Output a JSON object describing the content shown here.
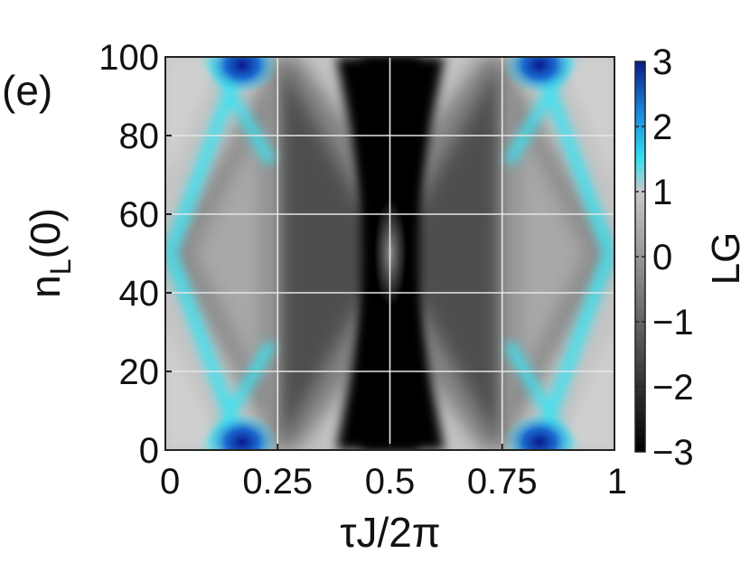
{
  "panel_label": "(e)",
  "chart_data": {
    "type": "heatmap",
    "title": "",
    "xlabel": "τJ/2π",
    "ylabel_main": "n",
    "ylabel_sub": "L",
    "ylabel_tail": "(0)",
    "xlim": [
      0,
      1
    ],
    "ylim": [
      0,
      100
    ],
    "x_ticks": [
      {
        "value": 0,
        "label": "0"
      },
      {
        "value": 0.25,
        "label": "0.25"
      },
      {
        "value": 0.5,
        "label": "0.5"
      },
      {
        "value": 0.75,
        "label": "0.75"
      },
      {
        "value": 1,
        "label": "1"
      }
    ],
    "y_ticks": [
      {
        "value": 0,
        "label": "0"
      },
      {
        "value": 20,
        "label": "20"
      },
      {
        "value": 40,
        "label": "40"
      },
      {
        "value": 60,
        "label": "60"
      },
      {
        "value": 80,
        "label": "80"
      },
      {
        "value": 100,
        "label": "100"
      }
    ],
    "grid": true,
    "colorbar": {
      "label": "LG",
      "range": [
        -3,
        3
      ],
      "ticks": [
        {
          "value": 3,
          "label": "3"
        },
        {
          "value": 2,
          "label": "2"
        },
        {
          "value": 1,
          "label": "1"
        },
        {
          "value": 0,
          "label": "0"
        },
        {
          "value": -1,
          "label": "−1"
        },
        {
          "value": -2,
          "label": "−2"
        },
        {
          "value": -3,
          "label": "−3"
        }
      ],
      "stops": [
        {
          "value": -3,
          "color": "#000000"
        },
        {
          "value": 1,
          "color": "#c8c8c8"
        },
        {
          "value": 1.5,
          "color": "#33e0f0"
        },
        {
          "value": 2.2,
          "color": "#1a8ae0"
        },
        {
          "value": 3,
          "color": "#0a1a8c"
        }
      ]
    },
    "regions": [
      {
        "name": "gray-background",
        "LG": 0.6
      },
      {
        "name": "central-dark-band",
        "x_range": [
          0.35,
          0.65
        ],
        "LG": -3
      },
      {
        "name": "cyan-fringe-left",
        "x_range": [
          0.1,
          0.25
        ],
        "LG": 1.6
      },
      {
        "name": "cyan-fringe-right",
        "x_range": [
          0.75,
          0.9
        ],
        "LG": 1.6
      },
      {
        "name": "blue-spot",
        "x": 0.17,
        "y": 100,
        "LG": 3
      },
      {
        "name": "blue-spot",
        "x": 0.17,
        "y": 0,
        "LG": 3
      },
      {
        "name": "blue-spot",
        "x": 0.83,
        "y": 100,
        "LG": 3
      },
      {
        "name": "blue-spot",
        "x": 0.83,
        "y": 0,
        "LG": 3
      }
    ]
  }
}
